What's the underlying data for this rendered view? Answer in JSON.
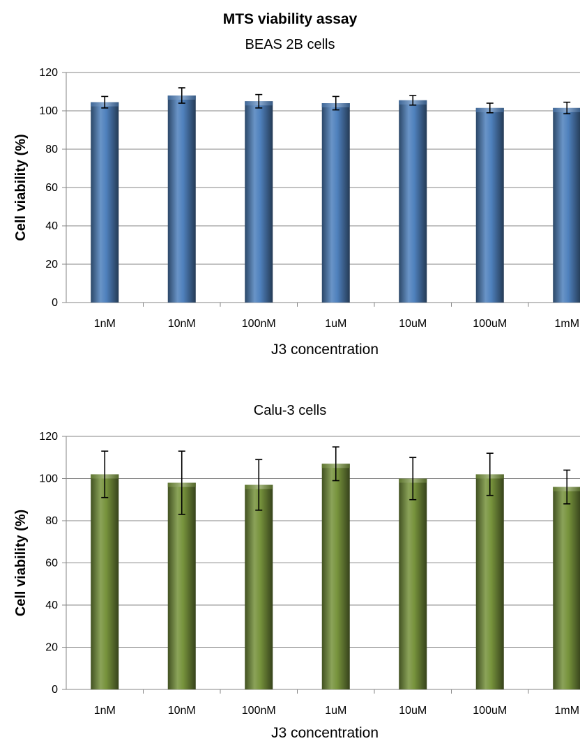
{
  "title": "MTS viability assay",
  "colors": {
    "blue_bar": "#4F81BD",
    "green_bar": "#77933C",
    "grid": "#868686",
    "error_bar": "#000000"
  },
  "chart_data": [
    {
      "type": "bar",
      "title": "BEAS 2B cells",
      "xlabel": "J3 concentration",
      "ylabel": "Cell viability (%)",
      "categories": [
        "1nM",
        "10nM",
        "100nM",
        "1uM",
        "10uM",
        "100uM",
        "1mM"
      ],
      "values": [
        104.5,
        108,
        105,
        104,
        105.5,
        101.5,
        101.5
      ],
      "errors": [
        3,
        4,
        3.5,
        3.5,
        2.5,
        2.5,
        3
      ],
      "ylim": [
        0,
        120
      ],
      "yticks": [
        0,
        20,
        40,
        60,
        80,
        100,
        120
      ],
      "grid": true,
      "color": "#4F81BD"
    },
    {
      "type": "bar",
      "title": "Calu-3 cells",
      "xlabel": "J3 concentration",
      "ylabel": "Cell viability (%)",
      "categories": [
        "1nM",
        "10nM",
        "100nM",
        "1uM",
        "10uM",
        "100uM",
        "1mM"
      ],
      "values": [
        102,
        98,
        97,
        107,
        100,
        102,
        96
      ],
      "errors": [
        11,
        15,
        12,
        8,
        10,
        10,
        8
      ],
      "ylim": [
        0,
        120
      ],
      "yticks": [
        0,
        20,
        40,
        60,
        80,
        100,
        120
      ],
      "grid": true,
      "color": "#77933C"
    }
  ]
}
